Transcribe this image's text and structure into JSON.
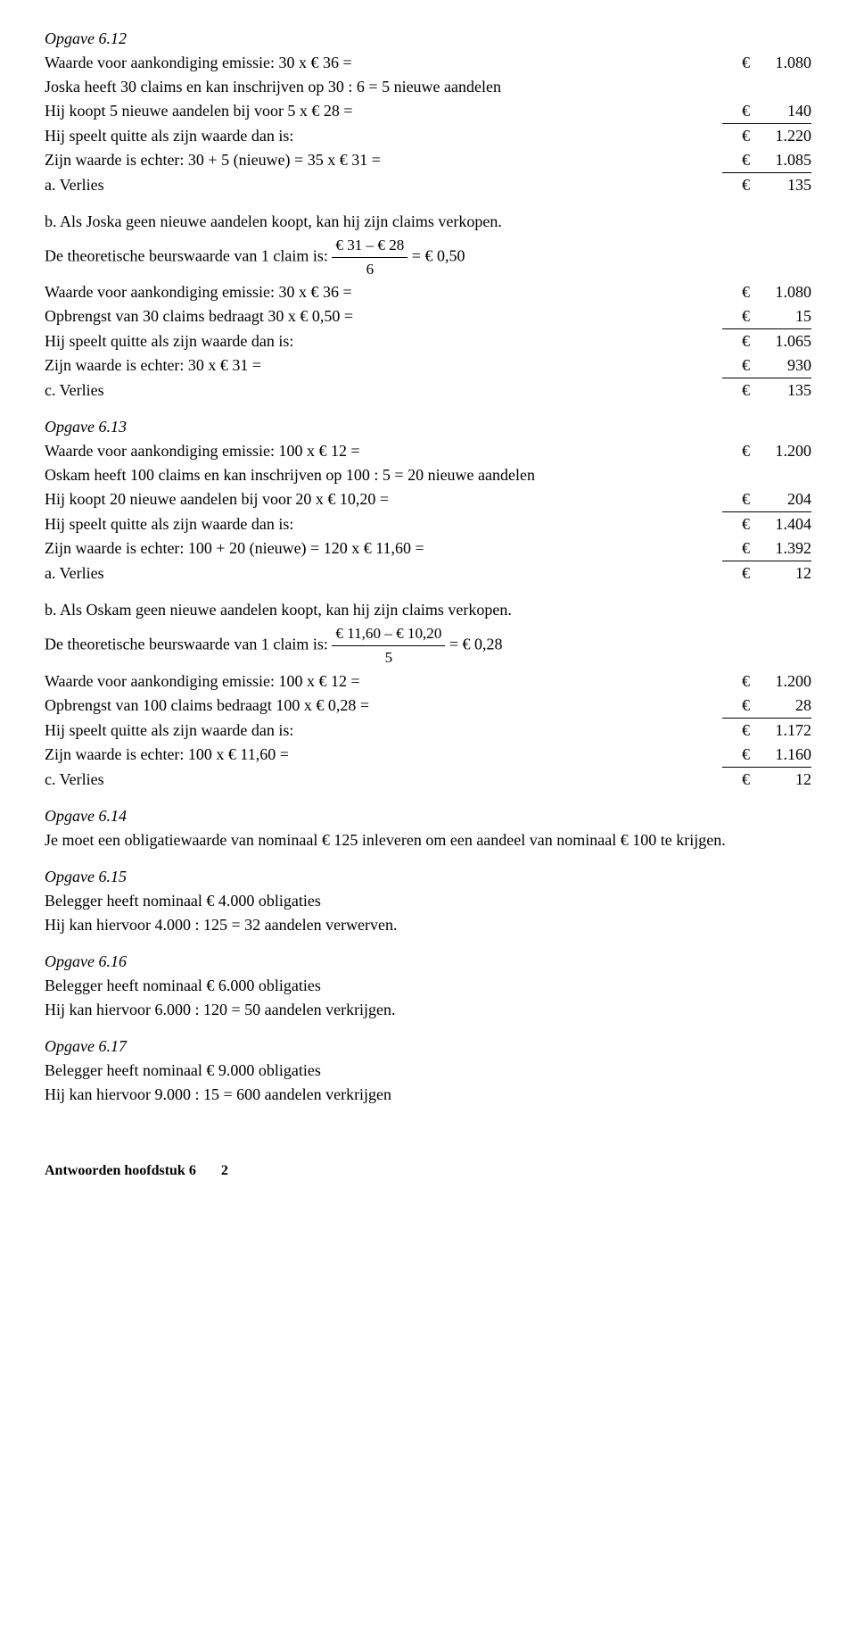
{
  "opg612": {
    "title": "Opgave 6.12",
    "lines": [
      {
        "left": "Waarde voor aankondiging emissie: 30 x € 36 =",
        "eur": "€",
        "num": "1.080"
      },
      {
        "left": "Joska heeft 30 claims en kan inschrijven op 30 : 6 = 5 nieuwe aandelen"
      },
      {
        "left": "Hij koopt 5 nieuwe aandelen bij voor 5 x € 28 =",
        "eur": "€",
        "num": "140",
        "underline": true
      },
      {
        "left": "Hij speelt quitte als zijn waarde dan is:",
        "eur": "€",
        "num": "1.220"
      },
      {
        "left": "Zijn waarde is echter: 30 + 5 (nieuwe) = 35 x € 31 =",
        "eur": "€",
        "num": "1.085",
        "underline": true
      },
      {
        "left": "a.  Verlies",
        "eur": "€",
        "num": "135"
      }
    ],
    "b_intro": "b.  Als Joska geen nieuwe aandelen koopt, kan hij zijn claims verkopen.",
    "b_theo_pre": "De theoretische beurswaarde van 1 claim is: ",
    "b_frac_top": "€ 31 – € 28",
    "b_frac_bot": "6",
    "b_theo_post": " = € 0,50",
    "b_lines": [
      {
        "left": "Waarde voor aankondiging emissie: 30 x € 36 =",
        "eur": "€",
        "num": "1.080"
      },
      {
        "left": "Opbrengst van 30 claims bedraagt 30 x € 0,50 =",
        "eur": "€",
        "num": "15",
        "underline": true
      },
      {
        "left": "Hij speelt quitte als zijn waarde dan is:",
        "eur": "€",
        "num": "1.065"
      },
      {
        "left": "Zijn waarde is echter: 30 x € 31 =",
        "eur": "€",
        "num": "930",
        "underline": true
      },
      {
        "left": "c.  Verlies",
        "eur": "€",
        "num": "135"
      }
    ]
  },
  "opg613": {
    "title": "Opgave 6.13",
    "lines": [
      {
        "left": "Waarde voor aankondiging emissie: 100 x € 12 =",
        "eur": "€",
        "num": "1.200"
      },
      {
        "left": "Oskam heeft 100 claims en kan inschrijven op 100 : 5 = 20 nieuwe aandelen"
      },
      {
        "left": "Hij koopt 20 nieuwe aandelen bij voor 20 x € 10,20 =",
        "eur": "€",
        "num": "204",
        "underline": true
      },
      {
        "left": "Hij speelt quitte als zijn waarde dan is:",
        "eur": "€",
        "num": "1.404"
      },
      {
        "left": "Zijn waarde is echter: 100 + 20 (nieuwe) = 120 x € 11,60 =",
        "eur": "€",
        "num": "1.392",
        "underline": true
      },
      {
        "left": "a.  Verlies",
        "eur": "€",
        "num": "12"
      }
    ],
    "b_intro": "b.  Als Oskam geen nieuwe aandelen koopt, kan hij zijn claims verkopen.",
    "b_theo_pre": "De theoretische beurswaarde van 1 claim is: ",
    "b_frac_top": "€ 11,60 – € 10,20",
    "b_frac_bot": "5",
    "b_theo_post": " = € 0,28",
    "b_lines": [
      {
        "left": "Waarde voor aankondiging emissie: 100 x € 12 =",
        "eur": "€",
        "num": "1.200"
      },
      {
        "left": "Opbrengst van 100 claims bedraagt 100 x € 0,28 =",
        "eur": "€",
        "num": "28",
        "underline": true
      },
      {
        "left": "Hij speelt quitte als zijn waarde dan is:",
        "eur": "€",
        "num": "1.172"
      },
      {
        "left": "Zijn waarde is echter: 100 x € 11,60 =",
        "eur": "€",
        "num": "1.160",
        "underline": true
      },
      {
        "left": "c.  Verlies",
        "eur": "€",
        "num": "12"
      }
    ]
  },
  "opg614": {
    "title": "Opgave 6.14",
    "text": "Je moet een obligatiewaarde van nominaal € 125 inleveren om een aandeel van nominaal € 100 te krijgen."
  },
  "opg615": {
    "title": "Opgave 6.15",
    "l1": "Belegger heeft nominaal € 4.000 obligaties",
    "l2": "Hij kan hiervoor  4.000 : 125 = 32 aandelen verwerven."
  },
  "opg616": {
    "title": "Opgave 6.16",
    "l1": "Belegger heeft nominaal € 6.000 obligaties",
    "l2": "Hij kan hiervoor  6.000 : 120 = 50 aandelen verkrijgen."
  },
  "opg617": {
    "title": "Opgave 6.17",
    "l1": "Belegger heeft nominaal € 9.000 obligaties",
    "l2": "Hij kan hiervoor  9.000 : 15 = 600 aandelen verkrijgen"
  },
  "footer": {
    "text": "Antwoorden hoofdstuk 6",
    "page": "2"
  }
}
